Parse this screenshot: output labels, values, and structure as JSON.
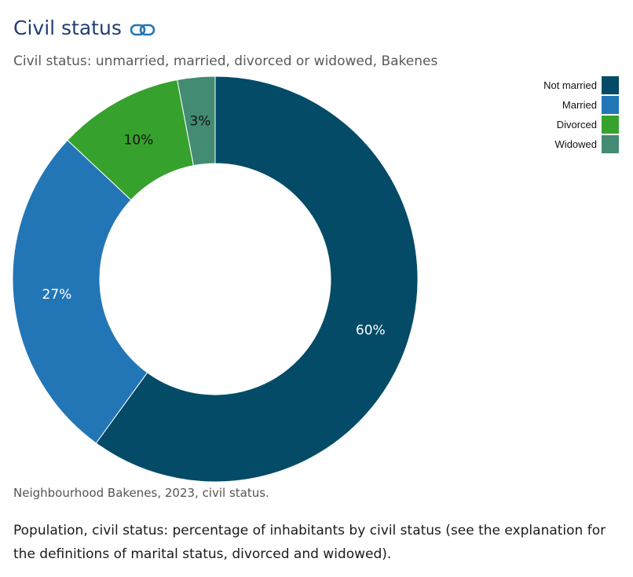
{
  "header": {
    "title": "Civil status",
    "subtitle": "Civil status: unmarried, married, divorced or widowed, Bakenes"
  },
  "colors": {
    "not_married": "#034b67",
    "married": "#2376b6",
    "divorced": "#36a12d",
    "widowed": "#438b73",
    "title": "#1f3f73",
    "link_icon": "#2376b6"
  },
  "icons": {
    "title_link": "link-icon"
  },
  "chart_data": {
    "type": "pie",
    "variant": "donut",
    "categories": [
      "Not married",
      "Married",
      "Divorced",
      "Widowed"
    ],
    "values": [
      60,
      27,
      10,
      3
    ],
    "data_labels": [
      "60%",
      "27%",
      "10%",
      "3%"
    ],
    "label_colors": [
      "#ffffff",
      "#ffffff",
      "#111111",
      "#111111"
    ],
    "colors": [
      "#034b67",
      "#2376b6",
      "#36a12d",
      "#438b73"
    ],
    "legend_position": "top-right"
  },
  "footer": {
    "source": "Neighbourhood Bakenes, 2023, civil status.",
    "description": "Population, civil status: percentage of inhabitants by civil status (see the explanation for the definitions of marital status, divorced and widowed)."
  }
}
